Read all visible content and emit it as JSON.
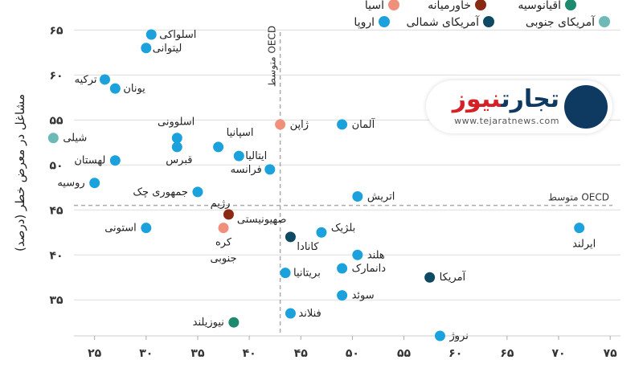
{
  "chart_data": {
    "type": "scatter",
    "ylabel": "مشاغل در معرض خطر (درصد)",
    "xlim": [
      23,
      76
    ],
    "ylim": [
      31,
      67
    ],
    "x_ticks": [
      25,
      30,
      35,
      40,
      45,
      50,
      55,
      60,
      65,
      70,
      75
    ],
    "y_ticks": [
      35,
      40,
      45,
      50,
      55,
      60,
      65
    ],
    "x_tick_labels": [
      "۲۵",
      "۳۰",
      "۳۵",
      "۴۰",
      "۴۵",
      "۵۰",
      "۵۵",
      "۶۰",
      "۶۵",
      "۷۰",
      "۷۵"
    ],
    "y_tick_labels": [
      "۳۵",
      "۴۰",
      "۴۵",
      "۵۰",
      "۵۵",
      "۶۰",
      "۶۵"
    ],
    "grid": "horizontal",
    "legend": [
      {
        "name": "آسیا",
        "color": "#f0907a"
      },
      {
        "name": "خاورمیانه",
        "color": "#8b2a12"
      },
      {
        "name": "اقیانوسیه",
        "color": "#1c8a6e"
      },
      {
        "name": "اروپا",
        "color": "#1ba1dc"
      },
      {
        "name": "آمریکای شمالی",
        "color": "#0e4a63"
      },
      {
        "name": "آمریکای جنوبی",
        "color": "#6cb9b7"
      }
    ],
    "reference_lines": {
      "vertical": {
        "label": "متوسط OECD",
        "x": 43
      },
      "horizontal": {
        "label": "متوسط OECD",
        "y": 45.5
      }
    },
    "points": [
      {
        "label": "اسلواکی",
        "x": 30.5,
        "y": 64.5,
        "group": "اروپا"
      },
      {
        "label": "لیتوانی",
        "x": 30.0,
        "y": 63.0,
        "group": "اروپا"
      },
      {
        "label": "ترکیه",
        "x": 26.0,
        "y": 59.5,
        "group": "اروپا"
      },
      {
        "label": "یونان",
        "x": 27.0,
        "y": 58.5,
        "group": "اروپا"
      },
      {
        "label": "ژاپن",
        "x": 43.0,
        "y": 54.5,
        "group": "آسیا"
      },
      {
        "label": "آلمان",
        "x": 49.0,
        "y": 54.5,
        "group": "اروپا"
      },
      {
        "label": "اسلوونی",
        "x": 33.0,
        "y": 53.0,
        "group": "اروپا"
      },
      {
        "label": "شیلی",
        "x": 21.0,
        "y": 53.0,
        "group": "آمریکای جنوبی"
      },
      {
        "label": "اسپانیا",
        "x": 37.0,
        "y": 52.0,
        "group": "اروپا"
      },
      {
        "label": "قبرس",
        "x": 33.0,
        "y": 52.0,
        "group": "اروپا"
      },
      {
        "label": "ایتالیا",
        "x": 39.0,
        "y": 51.0,
        "group": "اروپا"
      },
      {
        "label": "لهستان",
        "x": 27.0,
        "y": 50.5,
        "group": "اروپا"
      },
      {
        "label": "فرانسه",
        "x": 42.0,
        "y": 49.5,
        "group": "اروپا"
      },
      {
        "label": "روسیه",
        "x": 25.0,
        "y": 48.0,
        "group": "اروپا"
      },
      {
        "label": "جمهوری چک",
        "x": 35.0,
        "y": 47.0,
        "group": "اروپا"
      },
      {
        "label": "اتریش",
        "x": 50.5,
        "y": 46.5,
        "group": "اروپا"
      },
      {
        "label": "رژیم صهیونیستی",
        "x": 38.0,
        "y": 44.5,
        "group": "خاورمیانه"
      },
      {
        "label": "کره جنوبی",
        "x": 37.5,
        "y": 43.0,
        "group": "آسیا"
      },
      {
        "label": "استونی",
        "x": 30.0,
        "y": 43.0,
        "group": "اروپا"
      },
      {
        "label": "بلژیک",
        "x": 47.0,
        "y": 42.5,
        "group": "اروپا"
      },
      {
        "label": "کانادا",
        "x": 44.0,
        "y": 42.0,
        "group": "آمریکای شمالی"
      },
      {
        "label": "ایرلند",
        "x": 72.0,
        "y": 43.0,
        "group": "اروپا"
      },
      {
        "label": "هلند",
        "x": 50.5,
        "y": 40.0,
        "group": "اروپا"
      },
      {
        "label": "دانمارک",
        "x": 49.0,
        "y": 38.5,
        "group": "اروپا"
      },
      {
        "label": "بریتانیا",
        "x": 43.5,
        "y": 38.0,
        "group": "اروپا"
      },
      {
        "label": "آمریکا",
        "x": 57.5,
        "y": 37.5,
        "group": "آمریکای شمالی"
      },
      {
        "label": "سوئد",
        "x": 49.0,
        "y": 35.5,
        "group": "اروپا"
      },
      {
        "label": "فنلاند",
        "x": 44.0,
        "y": 33.5,
        "group": "اروپا"
      },
      {
        "label": "نیوزیلند",
        "x": 38.5,
        "y": 32.5,
        "group": "اقیانوسیه"
      },
      {
        "label": "نروژ",
        "x": 58.5,
        "y": 31.0,
        "group": "اروپا"
      }
    ]
  },
  "logo": {
    "name_blue": "تجارت",
    "name_red": "نیوز",
    "url": "www.tejaratnews.com"
  }
}
